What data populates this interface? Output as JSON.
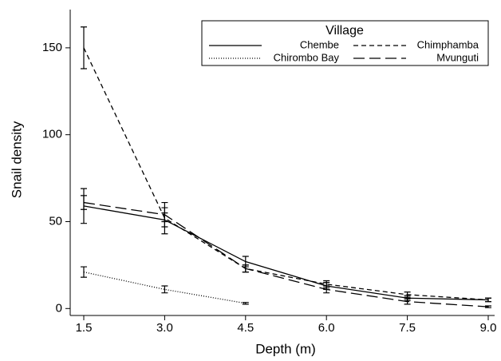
{
  "chart_data": {
    "type": "line",
    "x_label": "Depth (m)",
    "y_label": "Snail density",
    "categories": [
      "1.5",
      "3.0",
      "4.5",
      "6.0",
      "7.5",
      "9.0"
    ],
    "series": [
      {
        "name": "Chembe",
        "color": "#000000",
        "dash": "none",
        "values": [
          59,
          51,
          27,
          13,
          6,
          5
        ],
        "errors": [
          10,
          4,
          3,
          2,
          1.5,
          1
        ]
      },
      {
        "name": "Chimphamba",
        "color": "#000000",
        "dash": "6,4",
        "values": [
          150,
          52,
          23,
          14,
          8,
          5
        ],
        "errors": [
          12,
          9,
          2,
          2,
          1.5,
          1
        ]
      },
      {
        "name": "Chirombo Bay",
        "color": "#000000",
        "dash": "1,2",
        "values": [
          21,
          11,
          3,
          null,
          null,
          null
        ],
        "errors": [
          3,
          2,
          0.5,
          null,
          null,
          null
        ]
      },
      {
        "name": "Mvunguti",
        "color": "#000000",
        "dash": "14,6",
        "values": [
          61,
          54,
          23,
          11,
          4,
          1
        ],
        "errors": [
          4,
          4,
          2,
          2,
          1.5,
          0.5
        ]
      }
    ],
    "legend_title": "Village",
    "ylim": [
      -4,
      172
    ],
    "yticks": [
      0,
      50,
      100,
      150
    ]
  }
}
